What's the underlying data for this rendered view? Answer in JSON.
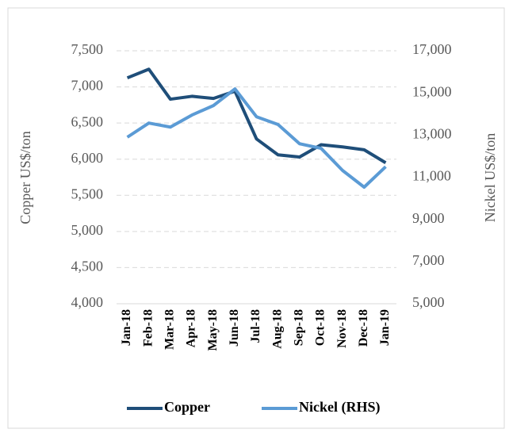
{
  "chart_data": {
    "type": "line",
    "categories": [
      "Jan-18",
      "Feb-18",
      "Mar-18",
      "Apr-18",
      "May-18",
      "Jun-18",
      "Jul-18",
      "Aug-18",
      "Sep-18",
      "Oct-18",
      "Nov-18",
      "Dec-18",
      "Jan-19"
    ],
    "series": [
      {
        "name": "Copper",
        "color": "#1f4e79",
        "axis": "y",
        "values": [
          7125,
          7245,
          6830,
          6870,
          6840,
          6940,
          6280,
          6060,
          6030,
          6200,
          6170,
          6130,
          5950
        ]
      },
      {
        "name": "Nickel (RHS)",
        "color": "#5b9bd5",
        "axis": "y2",
        "values": [
          12900,
          13570,
          13380,
          13950,
          14400,
          15190,
          13870,
          13500,
          12590,
          12370,
          11320,
          10530,
          11500
        ]
      }
    ],
    "ylabel": "Copper US$/ton",
    "y2label": "Nickel US$/ton",
    "ylim": [
      4000,
      7500
    ],
    "yticks": [
      {
        "value": 4000,
        "label": "4,000"
      },
      {
        "value": 4500,
        "label": "4,500"
      },
      {
        "value": 5000,
        "label": "5,000"
      },
      {
        "value": 5500,
        "label": "5,500"
      },
      {
        "value": 6000,
        "label": "6,000"
      },
      {
        "value": 6500,
        "label": "6,500"
      },
      {
        "value": 7000,
        "label": "7,000"
      },
      {
        "value": 7500,
        "label": "7,500"
      }
    ],
    "y2lim": [
      5000,
      17000
    ],
    "y2ticks": [
      {
        "value": 5000,
        "label": "5,000"
      },
      {
        "value": 7000,
        "label": "7,000"
      },
      {
        "value": 9000,
        "label": "9,000"
      },
      {
        "value": 11000,
        "label": "11,000"
      },
      {
        "value": 13000,
        "label": "13,000"
      },
      {
        "value": 15000,
        "label": "15,000"
      },
      {
        "value": 17000,
        "label": "17,000"
      }
    ],
    "grid": true,
    "legend": "bottom"
  }
}
